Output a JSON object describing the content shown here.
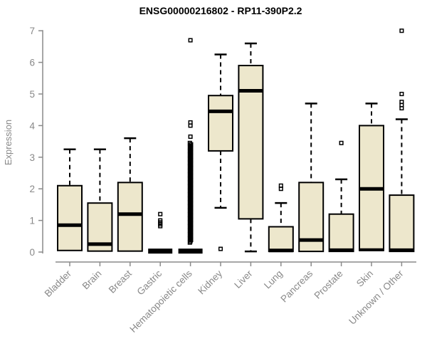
{
  "chart_data": {
    "type": "boxplot",
    "title": "ENSG00000216802 - RP11-390P2.2",
    "y_axis": {
      "label": "Expression",
      "range": [
        0,
        7
      ],
      "ticks": [
        0,
        1,
        2,
        3,
        4,
        5,
        6,
        7
      ]
    },
    "x_axis": {
      "categories": [
        "Bladder",
        "Brain",
        "Breast",
        "Gastric",
        "Hematopoietic cells",
        "Kidney",
        "Liver",
        "Lung",
        "Pancreas",
        "Prostate",
        "Skin",
        "Unknown / Other"
      ]
    },
    "grid": false,
    "legend": "none",
    "series": [
      {
        "category": "Bladder",
        "q1": 0.05,
        "median": 0.85,
        "q3": 2.1,
        "whisker_low": null,
        "whisker_high": 3.25,
        "outliers": []
      },
      {
        "category": "Brain",
        "q1": 0.03,
        "median": 0.25,
        "q3": 1.55,
        "whisker_low": null,
        "whisker_high": 3.25,
        "outliers": []
      },
      {
        "category": "Breast",
        "q1": 0.03,
        "median": 1.2,
        "q3": 2.2,
        "whisker_low": null,
        "whisker_high": 3.6,
        "outliers": []
      },
      {
        "category": "Gastric",
        "q1": 0.0,
        "median": 0.03,
        "q3": 0.06,
        "collapsed": true,
        "whisker_low": null,
        "whisker_high": null,
        "outliers": [
          0.82,
          0.88,
          0.94,
          1.0,
          1.2
        ]
      },
      {
        "category": "Hematopoietic cells",
        "q1": 0.0,
        "median": 0.03,
        "q3": 0.06,
        "collapsed": true,
        "whisker_low": null,
        "whisker_high": null,
        "outliers": [
          3.65,
          4.0,
          4.1,
          6.7
        ],
        "outlier_dense_range": [
          0.3,
          3.45
        ]
      },
      {
        "category": "Kidney",
        "q1": 3.2,
        "median": 4.45,
        "q3": 4.95,
        "whisker_low": 1.4,
        "whisker_high": 6.25,
        "outliers": [
          0.1
        ]
      },
      {
        "category": "Liver",
        "q1": 1.05,
        "median": 5.1,
        "q3": 5.9,
        "whisker_low": 0.02,
        "whisker_high": 6.6,
        "outliers": []
      },
      {
        "category": "Lung",
        "q1": 0.02,
        "median": 0.05,
        "q3": 0.8,
        "whisker_low": null,
        "whisker_high": 1.55,
        "outliers": [
          2.0,
          2.1
        ]
      },
      {
        "category": "Pancreas",
        "q1": 0.02,
        "median": 0.38,
        "q3": 2.2,
        "whisker_low": null,
        "whisker_high": 4.7,
        "outliers": []
      },
      {
        "category": "Prostate",
        "q1": 0.02,
        "median": 0.06,
        "q3": 1.2,
        "whisker_low": null,
        "whisker_high": 2.3,
        "outliers": [
          3.45
        ]
      },
      {
        "category": "Skin",
        "q1": 0.05,
        "median": 2.0,
        "q3": 4.0,
        "whisker_low": null,
        "whisker_high": 4.7,
        "base_bar": true,
        "outliers": []
      },
      {
        "category": "Unknown / Other",
        "q1": 0.02,
        "median": 0.06,
        "q3": 1.8,
        "whisker_low": null,
        "whisker_high": 4.2,
        "outliers": [
          4.55,
          4.65,
          4.75,
          5.0,
          7.0
        ]
      }
    ],
    "colors": {
      "box_fill": "#ede7cc",
      "box_stroke": "#000000",
      "median": "#000000",
      "whisker": "#000000",
      "outlier": "#000000",
      "axis": "#8a8a8a",
      "tick_label": "#888888",
      "title": "#000000",
      "background": "#ffffff"
    }
  }
}
